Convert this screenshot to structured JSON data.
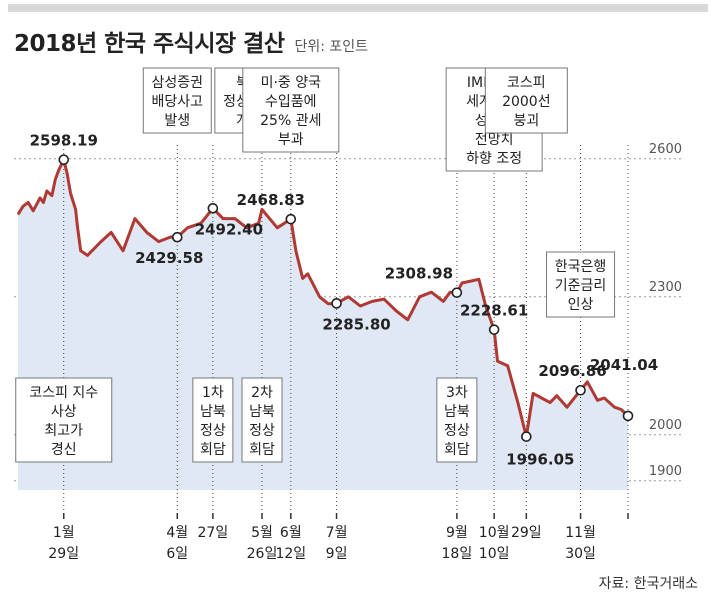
{
  "header": {
    "title": "2018년 한국 주식시장 결산",
    "unit": "단위: 포인트"
  },
  "source": "자료: 한국거래소",
  "chart_data": {
    "type": "line",
    "title": "2018년 한국 주식시장 결산",
    "ylabel": "",
    "xlabel": "",
    "ylim": [
      1880,
      2680
    ],
    "yticks": [
      1900,
      2000,
      2300,
      2600
    ],
    "grid": true,
    "line_color": "#b03a33",
    "area_color": "#dfe8f4",
    "series": [
      {
        "x": [
          "2018-01-02",
          "2018-01-05",
          "2018-01-08",
          "2018-01-11",
          "2018-01-15",
          "2018-01-17",
          "2018-01-19",
          "2018-01-22",
          "2018-01-24",
          "2018-01-26",
          "2018-01-29",
          "2018-01-31",
          "2018-02-02",
          "2018-02-05",
          "2018-02-06",
          "2018-02-08",
          "2018-02-12",
          "2018-02-20",
          "2018-02-26",
          "2018-03-05",
          "2018-03-12",
          "2018-03-19",
          "2018-03-26",
          "2018-04-02",
          "2018-04-06",
          "2018-04-12",
          "2018-04-20",
          "2018-04-27",
          "2018-05-03",
          "2018-05-10",
          "2018-05-17",
          "2018-05-24",
          "2018-05-26",
          "2018-06-04",
          "2018-06-12",
          "2018-06-15",
          "2018-06-19",
          "2018-06-22",
          "2018-06-29",
          "2018-07-04",
          "2018-07-09",
          "2018-07-16",
          "2018-07-23",
          "2018-07-30",
          "2018-08-06",
          "2018-08-13",
          "2018-08-20",
          "2018-08-27",
          "2018-09-03",
          "2018-09-10",
          "2018-09-14",
          "2018-09-18",
          "2018-09-21",
          "2018-10-01",
          "2018-10-05",
          "2018-10-10",
          "2018-10-12",
          "2018-10-18",
          "2018-10-24",
          "2018-10-29",
          "2018-11-02",
          "2018-11-07",
          "2018-11-12",
          "2018-11-16",
          "2018-11-22",
          "2018-11-30",
          "2018-12-04",
          "2018-12-10",
          "2018-12-14",
          "2018-12-20",
          "2018-12-24",
          "2018-12-28"
        ],
        "y": [
          2479,
          2497,
          2505,
          2487,
          2515,
          2505,
          2530,
          2520,
          2555,
          2575,
          2598.19,
          2568,
          2525,
          2490,
          2455,
          2400,
          2390,
          2420,
          2440,
          2400,
          2470,
          2440,
          2420,
          2430,
          2429.58,
          2450,
          2460,
          2492.4,
          2470,
          2470,
          2450,
          2460,
          2490,
          2450,
          2468.83,
          2400,
          2340,
          2350,
          2300,
          2285,
          2285.8,
          2300,
          2280,
          2290,
          2295,
          2270,
          2250,
          2300,
          2310,
          2290,
          2310,
          2308.98,
          2330,
          2338,
          2280,
          2228.61,
          2160,
          2150,
          2070,
          1996.05,
          2090,
          2080,
          2070,
          2085,
          2060,
          2096.86,
          2115,
          2075,
          2080,
          2060,
          2055,
          2041.04
        ]
      }
    ],
    "point_labels": [
      {
        "x": "2018-01-29",
        "y": 2598.19,
        "label": "2598.19"
      },
      {
        "x": "2018-04-06",
        "y": 2429.58,
        "label": "2429.58"
      },
      {
        "x": "2018-04-27",
        "y": 2492.4,
        "label": "2492.40"
      },
      {
        "x": "2018-06-12",
        "y": 2468.83,
        "label": "2468.83"
      },
      {
        "x": "2018-07-09",
        "y": 2285.8,
        "label": "2285.80"
      },
      {
        "x": "2018-09-18",
        "y": 2308.98,
        "label": "2308.98"
      },
      {
        "x": "2018-10-10",
        "y": 2228.61,
        "label": "2228.61"
      },
      {
        "x": "2018-10-29",
        "y": 1996.05,
        "label": "1996.05"
      },
      {
        "x": "2018-11-30",
        "y": 2096.86,
        "label": "2096.86"
      },
      {
        "x": "2018-12-28",
        "y": 2041.04,
        "label": "2041.04"
      }
    ],
    "events": [
      {
        "date": "2018-01-29",
        "date_label": [
          "1월",
          "29일"
        ],
        "note": [
          "코스피 지수",
          "사상",
          "최고가",
          "경신"
        ],
        "note_place": "bottom"
      },
      {
        "date": "2018-04-06",
        "date_label": [
          "4월",
          "6일"
        ],
        "note": [
          "삼성증권",
          "배당사고",
          "발생"
        ],
        "note_place": "top"
      },
      {
        "date": "2018-04-27",
        "date_label": [
          "27일"
        ],
        "note": [
          "1차",
          "남북",
          "정상",
          "회담"
        ],
        "note_place": "bottom"
      },
      {
        "date": "2018-04-27",
        "note": [
          "북미",
          "정상회담",
          "개최"
        ],
        "note_place": "top"
      },
      {
        "date": "2018-05-26",
        "date_label": [
          "5월",
          "26일"
        ],
        "note": [
          "2차",
          "남북",
          "정상",
          "회담"
        ],
        "note_place": "bottom"
      },
      {
        "date": "2018-06-12",
        "date_label": [
          "6월",
          "12일"
        ],
        "note": [
          "미·중 양국",
          "수입품에",
          "25% 관세",
          "부과"
        ],
        "note_place": "top"
      },
      {
        "date": "2018-07-09",
        "date_label": [
          "7월",
          "9일"
        ]
      },
      {
        "date": "2018-09-18",
        "date_label": [
          "9월",
          "18일"
        ],
        "note": [
          "3차",
          "남북",
          "정상",
          "회담"
        ],
        "note_place": "bottom"
      },
      {
        "date": "2018-10-10",
        "date_label": [
          "10월",
          "10일"
        ],
        "note": [
          "IMF 내년",
          "세계 경제",
          "성장률",
          "전망치",
          "하향 조정"
        ],
        "note_place": "top"
      },
      {
        "date": "2018-10-29",
        "date_label": [
          "29일"
        ],
        "note": [
          "코스피",
          "2000선",
          "붕괴"
        ],
        "note_place": "top"
      },
      {
        "date": "2018-11-30",
        "date_label": [
          "11월",
          "30일"
        ],
        "note": [
          "한국은행",
          "기준금리",
          "인상"
        ],
        "note_place": "mid"
      },
      {
        "date": "2018-12-28"
      }
    ]
  }
}
